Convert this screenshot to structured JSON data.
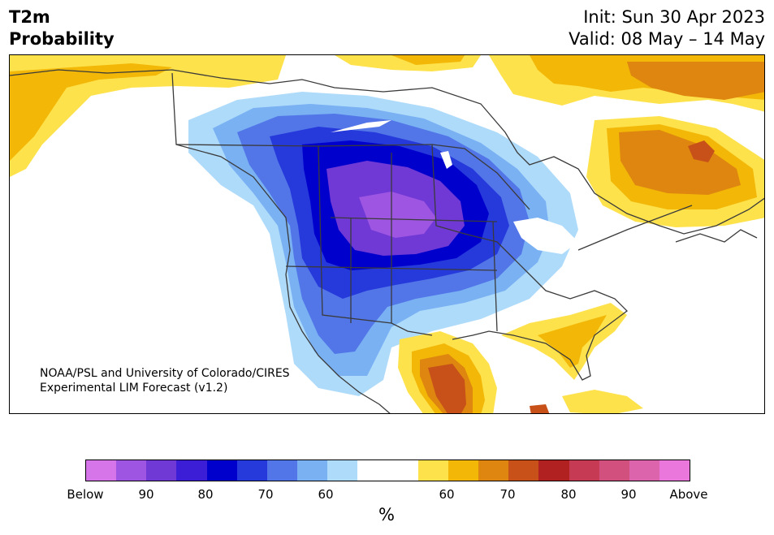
{
  "title_left": [
    "T2m",
    "Probability"
  ],
  "title_right": {
    "init": "Init: Sun 30 Apr 2023",
    "valid": "Valid: 08 May – 14 May"
  },
  "credit": [
    "NOAA/PSL and University of Colorado/CIRES",
    "Experimental LIM Forecast (v1.2)"
  ],
  "colorbar": {
    "unit": "%",
    "colors": [
      "#d575e9",
      "#9e55e1",
      "#7039d6",
      "#3b1ed6",
      "#0000cd",
      "#2639db",
      "#5276e8",
      "#79b1f3",
      "#afdbfb",
      "#ffffff",
      "#ffffff",
      "#fee24b",
      "#f2b707",
      "#de860f",
      "#c75119",
      "#b22121",
      "#c73a54",
      "#d1507e",
      "#dc64ad",
      "#ea77dc"
    ],
    "ticks": [
      "Below",
      "90",
      "80",
      "70",
      "60",
      "60",
      "70",
      "80",
      "90",
      "Above"
    ]
  },
  "map": {
    "region": "North America",
    "palette": {
      "below_90": "#9e55e1",
      "below_80": "#7039d6",
      "below_70": "#0000cd",
      "below_65": "#2639db",
      "below_60": "#5276e8",
      "below_55": "#79b1f3",
      "below_50": "#afdbfb",
      "above_50": "#fee24b",
      "above_60": "#f2b707",
      "above_65": "#de860f",
      "above_70": "#c75119"
    }
  }
}
